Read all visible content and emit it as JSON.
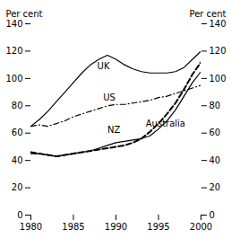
{
  "chart_data": {
    "type": "line",
    "ylabel": "Per cent",
    "y2label": "Per cent",
    "x": [
      1980,
      1981,
      1982,
      1983,
      1984,
      1985,
      1986,
      1987,
      1988,
      1989,
      1990,
      1991,
      1992,
      1993,
      1994,
      1995,
      1996,
      1997,
      1998,
      1999,
      2000
    ],
    "xlim": [
      1980,
      2000
    ],
    "xticks": [
      1980,
      1985,
      1990,
      1995,
      2000
    ],
    "ylim": [
      0,
      140
    ],
    "yticks": [
      0,
      20,
      40,
      60,
      80,
      100,
      120,
      140
    ],
    "y2lim": [
      0,
      140
    ],
    "y2ticks": [
      0,
      20,
      40,
      60,
      80,
      100,
      120,
      140
    ],
    "color": "#000000",
    "series": [
      {
        "name": "UK",
        "line_style": "solid",
        "values": [
          65,
          70,
          76,
          83,
          90,
          97,
          104,
          110,
          114,
          117,
          114,
          110,
          107,
          105,
          104,
          104,
          104,
          105,
          108,
          114,
          120
        ]
      },
      {
        "name": "US",
        "line_style": "dashdot",
        "values": [
          65,
          66,
          65,
          67,
          69,
          72,
          74,
          76,
          78,
          80,
          81,
          81,
          82,
          83,
          84,
          86,
          87,
          89,
          91,
          93,
          95
        ]
      },
      {
        "name": "NZ",
        "line_style": "dashed",
        "values": [
          46,
          45,
          44,
          43,
          44,
          45,
          46,
          47,
          48,
          49,
          50,
          51,
          53,
          56,
          61,
          67,
          74,
          82,
          92,
          103,
          112
        ]
      },
      {
        "name": "Australia",
        "line_style": "solid",
        "values": [
          45,
          45,
          44,
          43,
          44,
          45,
          46,
          47,
          49,
          51,
          53,
          54,
          55,
          56,
          58,
          63,
          69,
          77,
          87,
          97,
          105
        ]
      }
    ],
    "annotations": [
      {
        "text": "UK",
        "x": 1987.8,
        "y": 107
      },
      {
        "text": "US",
        "x": 1988.5,
        "y": 84
      },
      {
        "text": "NZ",
        "x": 1989.0,
        "y": 60
      },
      {
        "text": "Australia",
        "x": 1993.5,
        "y": 65
      }
    ]
  }
}
